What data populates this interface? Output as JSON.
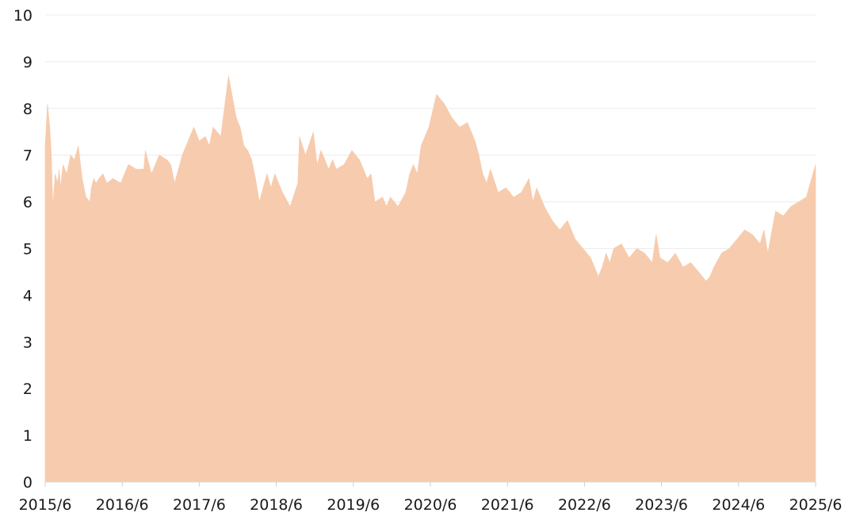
{
  "chart_data": {
    "type": "area",
    "title": "",
    "xlabel": "",
    "ylabel": "",
    "ylim": [
      0,
      10
    ],
    "y_ticks": [
      "0",
      "1",
      "2",
      "3",
      "4",
      "5",
      "6",
      "7",
      "8",
      "9",
      "10"
    ],
    "x_ticks": [
      "2015/6",
      "2016/6",
      "2017/6",
      "2018/6",
      "2019/6",
      "2020/6",
      "2021/6",
      "2022/6",
      "2023/6",
      "2024/6",
      "2025/6"
    ],
    "grid": "horizontal",
    "fill_color": "#f7cbad",
    "series": [
      {
        "x": [
          2015.42,
          2015.45,
          2015.48,
          2015.5,
          2015.52,
          2015.55,
          2015.58,
          2015.6,
          2015.62,
          2015.65,
          2015.7,
          2015.75,
          2015.8,
          2015.85,
          2015.9,
          2015.95,
          2016.0,
          2016.02,
          2016.05,
          2016.08,
          2016.12,
          2016.17,
          2016.22,
          2016.3,
          2016.4,
          2016.5,
          2016.6,
          2016.7,
          2016.72,
          2016.8,
          2016.9,
          2017.0,
          2017.05,
          2017.1,
          2017.2,
          2017.3,
          2017.35,
          2017.42,
          2017.5,
          2017.55,
          2017.6,
          2017.7,
          2017.8,
          2017.9,
          2017.95,
          2018.0,
          2018.05,
          2018.1,
          2018.15,
          2018.2,
          2018.3,
          2018.35,
          2018.4,
          2018.5,
          2018.6,
          2018.7,
          2018.72,
          2018.8,
          2018.9,
          2018.95,
          2019.0,
          2019.1,
          2019.15,
          2019.2,
          2019.3,
          2019.4,
          2019.5,
          2019.6,
          2019.65,
          2019.7,
          2019.8,
          2019.85,
          2019.9,
          2020.0,
          2020.1,
          2020.15,
          2020.2,
          2020.25,
          2020.3,
          2020.4,
          2020.5,
          2020.6,
          2020.7,
          2020.8,
          2020.9,
          2021.0,
          2021.05,
          2021.1,
          2021.15,
          2021.2,
          2021.3,
          2021.4,
          2021.5,
          2021.6,
          2021.7,
          2021.75,
          2021.8,
          2021.9,
          2022.0,
          2022.1,
          2022.2,
          2022.3,
          2022.4,
          2022.5,
          2022.6,
          2022.65,
          2022.7,
          2022.75,
          2022.8,
          2022.9,
          2023.0,
          2023.1,
          2023.2,
          2023.3,
          2023.35,
          2023.4,
          2023.5,
          2023.6,
          2023.7,
          2023.8,
          2023.9,
          2024.0,
          2024.05,
          2024.1,
          2024.2,
          2024.3,
          2024.4,
          2024.5,
          2024.6,
          2024.65,
          2024.7,
          2024.75,
          2024.8,
          2024.9,
          2025.0,
          2025.1,
          2025.2,
          2025.3,
          2025.42
        ],
        "values": [
          7.2,
          8.1,
          7.6,
          7.0,
          5.9,
          6.6,
          6.4,
          6.7,
          6.3,
          6.8,
          6.6,
          7.0,
          6.9,
          7.2,
          6.5,
          6.1,
          6.0,
          6.3,
          6.5,
          6.4,
          6.5,
          6.6,
          6.4,
          6.5,
          6.4,
          6.8,
          6.7,
          6.7,
          7.1,
          6.6,
          7.0,
          6.9,
          6.8,
          6.4,
          7.0,
          7.4,
          7.6,
          7.3,
          7.4,
          7.2,
          7.6,
          7.4,
          8.7,
          7.8,
          7.6,
          7.2,
          7.1,
          6.9,
          6.5,
          6.0,
          6.6,
          6.3,
          6.6,
          6.2,
          5.9,
          6.4,
          7.4,
          7.0,
          7.5,
          6.8,
          7.1,
          6.7,
          6.9,
          6.7,
          6.8,
          7.1,
          6.9,
          6.5,
          6.6,
          6.0,
          6.1,
          5.9,
          6.1,
          5.9,
          6.2,
          6.6,
          6.8,
          6.6,
          7.2,
          7.6,
          8.3,
          8.1,
          7.8,
          7.6,
          7.7,
          7.3,
          7.0,
          6.6,
          6.4,
          6.7,
          6.2,
          6.3,
          6.1,
          6.2,
          6.5,
          6.0,
          6.3,
          5.9,
          5.6,
          5.4,
          5.6,
          5.2,
          5.0,
          4.8,
          4.4,
          4.6,
          4.9,
          4.7,
          5.0,
          5.1,
          4.8,
          5.0,
          4.9,
          4.7,
          5.3,
          4.8,
          4.7,
          4.9,
          4.6,
          4.7,
          4.5,
          4.3,
          4.4,
          4.6,
          4.9,
          5.0,
          5.2,
          5.4,
          5.3,
          5.2,
          5.1,
          5.4,
          4.9,
          5.8,
          5.7,
          5.9,
          6.0,
          6.1,
          6.8
        ]
      }
    ]
  }
}
